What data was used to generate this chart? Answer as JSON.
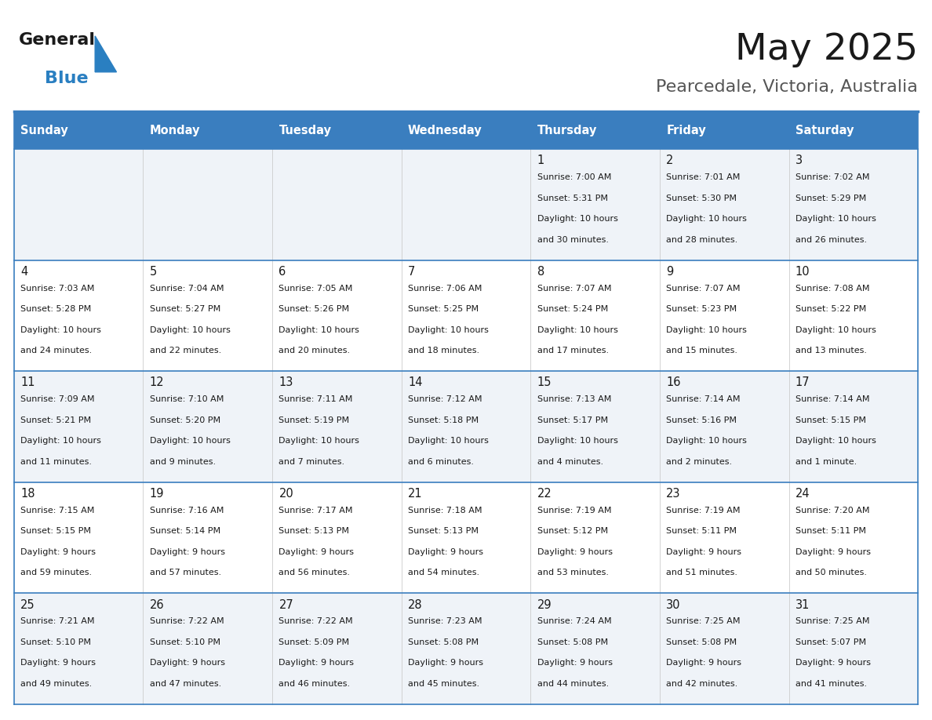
{
  "title": "May 2025",
  "subtitle": "Pearcedale, Victoria, Australia",
  "header_bg": "#3a7ebf",
  "header_text": "#ffffff",
  "row_bg_odd": "#eff3f8",
  "row_bg_even": "#ffffff",
  "border_color": "#3a7ebf",
  "text_color": "#1a1a1a",
  "day_headers": [
    "Sunday",
    "Monday",
    "Tuesday",
    "Wednesday",
    "Thursday",
    "Friday",
    "Saturday"
  ],
  "days": [
    {
      "day": 1,
      "col": 4,
      "row": 0,
      "sunrise": "7:00 AM",
      "sunset": "5:31 PM",
      "daylight_h": "10 hours",
      "daylight_m": "30 minutes"
    },
    {
      "day": 2,
      "col": 5,
      "row": 0,
      "sunrise": "7:01 AM",
      "sunset": "5:30 PM",
      "daylight_h": "10 hours",
      "daylight_m": "28 minutes"
    },
    {
      "day": 3,
      "col": 6,
      "row": 0,
      "sunrise": "7:02 AM",
      "sunset": "5:29 PM",
      "daylight_h": "10 hours",
      "daylight_m": "26 minutes"
    },
    {
      "day": 4,
      "col": 0,
      "row": 1,
      "sunrise": "7:03 AM",
      "sunset": "5:28 PM",
      "daylight_h": "10 hours",
      "daylight_m": "24 minutes"
    },
    {
      "day": 5,
      "col": 1,
      "row": 1,
      "sunrise": "7:04 AM",
      "sunset": "5:27 PM",
      "daylight_h": "10 hours",
      "daylight_m": "22 minutes"
    },
    {
      "day": 6,
      "col": 2,
      "row": 1,
      "sunrise": "7:05 AM",
      "sunset": "5:26 PM",
      "daylight_h": "10 hours",
      "daylight_m": "20 minutes"
    },
    {
      "day": 7,
      "col": 3,
      "row": 1,
      "sunrise": "7:06 AM",
      "sunset": "5:25 PM",
      "daylight_h": "10 hours",
      "daylight_m": "18 minutes"
    },
    {
      "day": 8,
      "col": 4,
      "row": 1,
      "sunrise": "7:07 AM",
      "sunset": "5:24 PM",
      "daylight_h": "10 hours",
      "daylight_m": "17 minutes"
    },
    {
      "day": 9,
      "col": 5,
      "row": 1,
      "sunrise": "7:07 AM",
      "sunset": "5:23 PM",
      "daylight_h": "10 hours",
      "daylight_m": "15 minutes"
    },
    {
      "day": 10,
      "col": 6,
      "row": 1,
      "sunrise": "7:08 AM",
      "sunset": "5:22 PM",
      "daylight_h": "10 hours",
      "daylight_m": "13 minutes"
    },
    {
      "day": 11,
      "col": 0,
      "row": 2,
      "sunrise": "7:09 AM",
      "sunset": "5:21 PM",
      "daylight_h": "10 hours",
      "daylight_m": "11 minutes"
    },
    {
      "day": 12,
      "col": 1,
      "row": 2,
      "sunrise": "7:10 AM",
      "sunset": "5:20 PM",
      "daylight_h": "10 hours",
      "daylight_m": "9 minutes"
    },
    {
      "day": 13,
      "col": 2,
      "row": 2,
      "sunrise": "7:11 AM",
      "sunset": "5:19 PM",
      "daylight_h": "10 hours",
      "daylight_m": "7 minutes"
    },
    {
      "day": 14,
      "col": 3,
      "row": 2,
      "sunrise": "7:12 AM",
      "sunset": "5:18 PM",
      "daylight_h": "10 hours",
      "daylight_m": "6 minutes"
    },
    {
      "day": 15,
      "col": 4,
      "row": 2,
      "sunrise": "7:13 AM",
      "sunset": "5:17 PM",
      "daylight_h": "10 hours",
      "daylight_m": "4 minutes"
    },
    {
      "day": 16,
      "col": 5,
      "row": 2,
      "sunrise": "7:14 AM",
      "sunset": "5:16 PM",
      "daylight_h": "10 hours",
      "daylight_m": "2 minutes"
    },
    {
      "day": 17,
      "col": 6,
      "row": 2,
      "sunrise": "7:14 AM",
      "sunset": "5:15 PM",
      "daylight_h": "10 hours",
      "daylight_m": "1 minute"
    },
    {
      "day": 18,
      "col": 0,
      "row": 3,
      "sunrise": "7:15 AM",
      "sunset": "5:15 PM",
      "daylight_h": "9 hours",
      "daylight_m": "59 minutes"
    },
    {
      "day": 19,
      "col": 1,
      "row": 3,
      "sunrise": "7:16 AM",
      "sunset": "5:14 PM",
      "daylight_h": "9 hours",
      "daylight_m": "57 minutes"
    },
    {
      "day": 20,
      "col": 2,
      "row": 3,
      "sunrise": "7:17 AM",
      "sunset": "5:13 PM",
      "daylight_h": "9 hours",
      "daylight_m": "56 minutes"
    },
    {
      "day": 21,
      "col": 3,
      "row": 3,
      "sunrise": "7:18 AM",
      "sunset": "5:13 PM",
      "daylight_h": "9 hours",
      "daylight_m": "54 minutes"
    },
    {
      "day": 22,
      "col": 4,
      "row": 3,
      "sunrise": "7:19 AM",
      "sunset": "5:12 PM",
      "daylight_h": "9 hours",
      "daylight_m": "53 minutes"
    },
    {
      "day": 23,
      "col": 5,
      "row": 3,
      "sunrise": "7:19 AM",
      "sunset": "5:11 PM",
      "daylight_h": "9 hours",
      "daylight_m": "51 minutes"
    },
    {
      "day": 24,
      "col": 6,
      "row": 3,
      "sunrise": "7:20 AM",
      "sunset": "5:11 PM",
      "daylight_h": "9 hours",
      "daylight_m": "50 minutes"
    },
    {
      "day": 25,
      "col": 0,
      "row": 4,
      "sunrise": "7:21 AM",
      "sunset": "5:10 PM",
      "daylight_h": "9 hours",
      "daylight_m": "49 minutes"
    },
    {
      "day": 26,
      "col": 1,
      "row": 4,
      "sunrise": "7:22 AM",
      "sunset": "5:10 PM",
      "daylight_h": "9 hours",
      "daylight_m": "47 minutes"
    },
    {
      "day": 27,
      "col": 2,
      "row": 4,
      "sunrise": "7:22 AM",
      "sunset": "5:09 PM",
      "daylight_h": "9 hours",
      "daylight_m": "46 minutes"
    },
    {
      "day": 28,
      "col": 3,
      "row": 4,
      "sunrise": "7:23 AM",
      "sunset": "5:08 PM",
      "daylight_h": "9 hours",
      "daylight_m": "45 minutes"
    },
    {
      "day": 29,
      "col": 4,
      "row": 4,
      "sunrise": "7:24 AM",
      "sunset": "5:08 PM",
      "daylight_h": "9 hours",
      "daylight_m": "44 minutes"
    },
    {
      "day": 30,
      "col": 5,
      "row": 4,
      "sunrise": "7:25 AM",
      "sunset": "5:08 PM",
      "daylight_h": "9 hours",
      "daylight_m": "42 minutes"
    },
    {
      "day": 31,
      "col": 6,
      "row": 4,
      "sunrise": "7:25 AM",
      "sunset": "5:07 PM",
      "daylight_h": "9 hours",
      "daylight_m": "41 minutes"
    }
  ],
  "logo_general_color": "#1a1a1a",
  "logo_blue_color": "#2a7fc1",
  "logo_triangle_color": "#2a7fc1",
  "figwidth": 11.88,
  "figheight": 9.18,
  "dpi": 100
}
